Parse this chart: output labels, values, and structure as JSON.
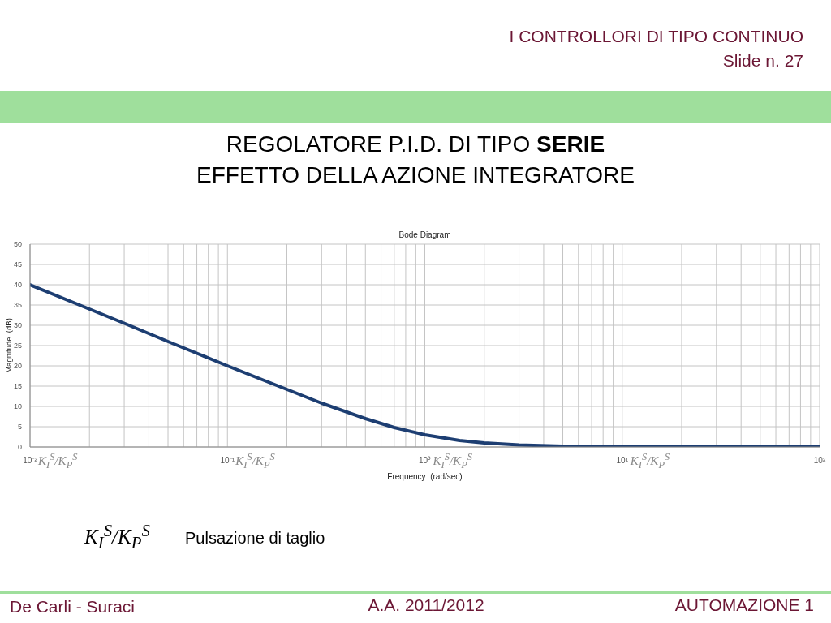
{
  "chart_data": {
    "type": "line",
    "title": "REGOLATORE P.I.D. DI TIPO SERIE\nEFFETTO DELLA AZIONE INTEGRATORE",
    "subtitle": "Bode Diagram",
    "xlabel": "Frequency  (rad/sec)",
    "ylabel": "Magnitude  (dB)",
    "annotations": [
      "I CONTROLLORI DI TIPO CONTINUO",
      "Slide n. 27",
      "K$_{I}$$^{S}$/K$_{P}$$^{S}$",
      "K$_{I}$$^{S}$/K$_{P}$$^{S}$",
      "K$_{I}$$^{S}$/K$_{P}$$^{S}$",
      "K$_{I}$$^{S}$/K$_{P}$$^{S}$",
      "K$_{I}$$^{S}$/K$_{P}$$^{S}$",
      "Pulsazione di taglio",
      "De Carli - Suraci",
      "A.A. 2011/2012",
      "AUTOMAZIONE 1"
    ],
    "x": [
      0.01,
      0.02,
      0.03,
      0.05,
      0.07,
      0.1,
      0.15,
      0.2,
      0.3,
      0.5,
      0.7,
      1,
      1.5,
      2,
      3,
      5,
      7,
      10,
      20,
      50,
      100
    ],
    "values": [
      40.0,
      34.0,
      30.5,
      26.0,
      23.1,
      20.0,
      16.6,
      14.2,
      10.8,
      7.0,
      4.8,
      3.0,
      1.6,
      1.0,
      0.5,
      0.2,
      0.1,
      0.0,
      0.0,
      0.0,
      0.0
    ],
    "color": "#1d3e72",
    "line_style": "solid",
    "log": "x",
    "xlim": [
      0.01,
      100
    ],
    "xticks": [
      {
        "value": 0.01,
        "label": "10⁻²"
      },
      {
        "value": 0.02,
        "label": null
      },
      {
        "value": 0.03,
        "label": null
      },
      {
        "value": 0.04,
        "label": null
      },
      {
        "value": 0.05,
        "label": null
      },
      {
        "value": 0.06,
        "label": null
      },
      {
        "value": 0.07,
        "label": null
      },
      {
        "value": 0.08,
        "label": null
      },
      {
        "value": 0.09,
        "label": null
      },
      {
        "value": 0.1,
        "label": "10⁻¹"
      },
      {
        "value": 0.2,
        "label": null
      },
      {
        "value": 0.3,
        "label": null
      },
      {
        "value": 0.4,
        "label": null
      },
      {
        "value": 0.5,
        "label": null
      },
      {
        "value": 0.6,
        "label": null
      },
      {
        "value": 0.7,
        "label": null
      },
      {
        "value": 0.8,
        "label": null
      },
      {
        "value": 0.9,
        "label": null
      },
      {
        "value": 1,
        "label": "10⁰"
      },
      {
        "value": 2,
        "label": null
      },
      {
        "value": 3,
        "label": null
      },
      {
        "value": 4,
        "label": null
      },
      {
        "value": 5,
        "label": null
      },
      {
        "value": 6,
        "label": null
      },
      {
        "value": 7,
        "label": null
      },
      {
        "value": 8,
        "label": null
      },
      {
        "value": 9,
        "label": null
      },
      {
        "value": 10,
        "label": "10¹"
      },
      {
        "value": 20,
        "label": null
      },
      {
        "value": 30,
        "label": null
      },
      {
        "value": 40,
        "label": null
      },
      {
        "value": 50,
        "label": null
      },
      {
        "value": 60,
        "label": null
      },
      {
        "value": 70,
        "label": null
      },
      {
        "value": 80,
        "label": null
      },
      {
        "value": 90,
        "label": null
      },
      {
        "value": 100,
        "label": "10²"
      }
    ],
    "ylim": [
      0,
      50
    ],
    "yticks": [
      0,
      5,
      10,
      15,
      20,
      25,
      30,
      35,
      40,
      45,
      50
    ],
    "grid": true
  }
}
